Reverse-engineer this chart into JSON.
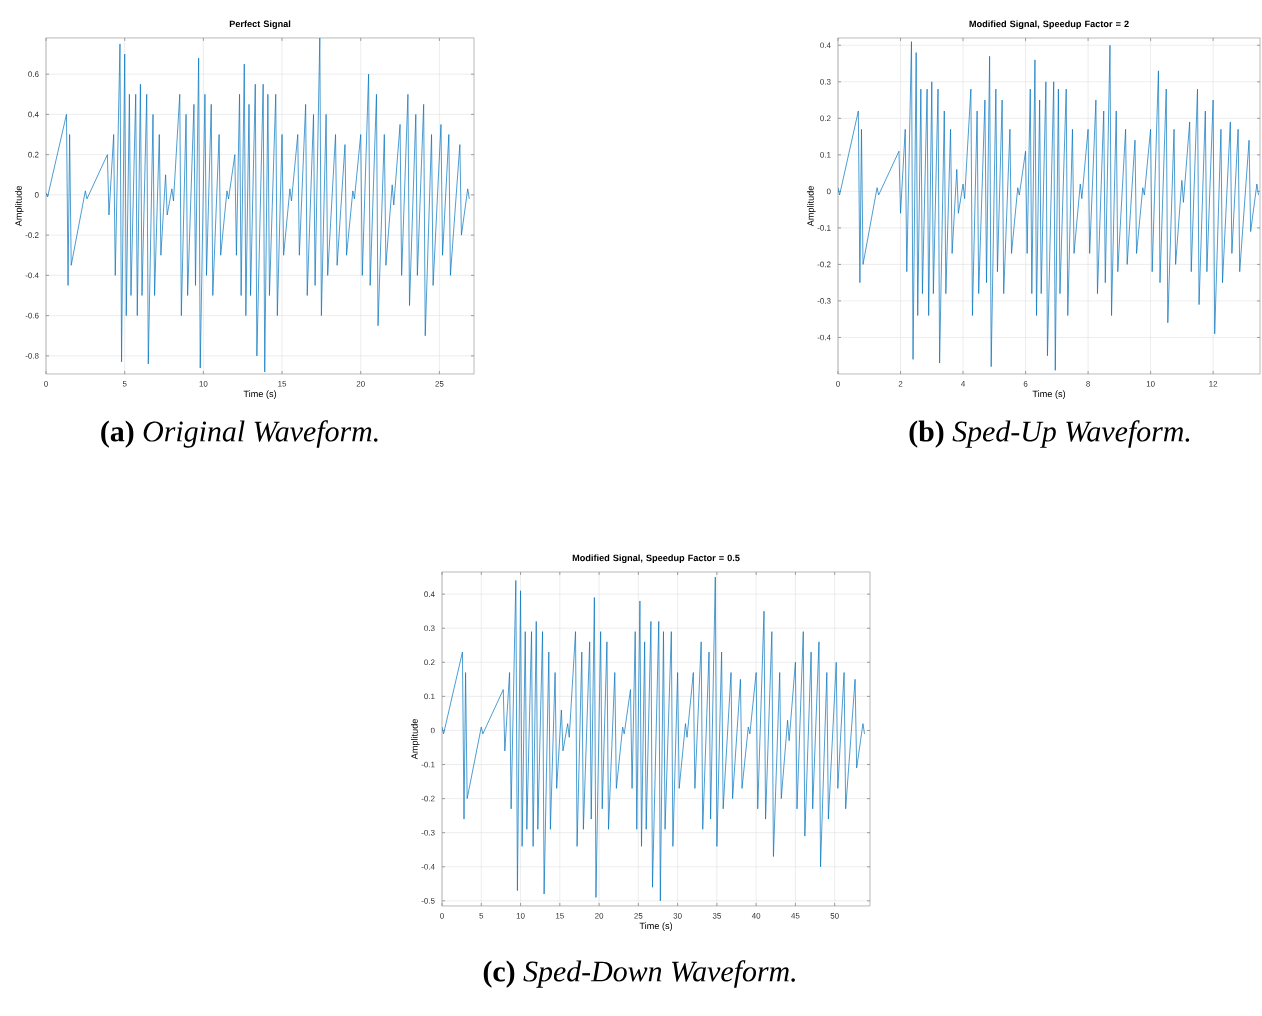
{
  "chart_data": [
    {
      "type": "line",
      "title": "Perfect Signal",
      "xlabel": "Time (s)",
      "ylabel": "Amplitude",
      "annotations": [
        "**(a)** *Original Waveform.*"
      ],
      "xlim": [
        0,
        27.2
      ],
      "ylim": [
        -0.89,
        0.78
      ],
      "xticks": [
        0,
        5,
        10,
        15,
        20,
        25
      ],
      "yticks": [
        -0.8,
        -0.6,
        -0.4,
        -0.2,
        0,
        0.2,
        0.4,
        0.6
      ],
      "grid": true,
      "series": [
        {
          "color": "#0072bd",
          "x": [
            0,
            0.1,
            1.3,
            1.4,
            1.5,
            1.6,
            2.5,
            2.6,
            3.9,
            4,
            4.3,
            4.4,
            4.7,
            4.8,
            5,
            5.1,
            5.3,
            5.4,
            5.7,
            5.8,
            6,
            6.1,
            6.4,
            6.5,
            6.8,
            6.9,
            7.2,
            7.3,
            7.6,
            7.7,
            8,
            8.1,
            8.5,
            8.6,
            8.9,
            9,
            9.4,
            9.5,
            9.7,
            9.8,
            10.1,
            10.2,
            10.5,
            10.6,
            11,
            11.1,
            11.5,
            11.6,
            12,
            12.1,
            12.3,
            12.4,
            12.6,
            12.7,
            12.9,
            13,
            13.3,
            13.4,
            13.8,
            13.9,
            14.1,
            14.2,
            14.6,
            14.7,
            15,
            15.1,
            15.5,
            15.6,
            16,
            16.1,
            16.5,
            16.6,
            17,
            17.1,
            17.4,
            17.5,
            17.8,
            17.9,
            18.4,
            18.5,
            19,
            19.1,
            19.5,
            19.6,
            20,
            20.1,
            20.5,
            20.6,
            21,
            21.1,
            21.5,
            21.6,
            22,
            22.1,
            22.5,
            22.6,
            23,
            23.1,
            23.5,
            23.6,
            24,
            24.1,
            24.5,
            24.6,
            25.1,
            25.2,
            25.6,
            25.7,
            26.3,
            26.4,
            26.8,
            26.9
          ],
          "values": [
            0.01,
            -0.01,
            0.4,
            -0.45,
            0.3,
            -0.35,
            0.02,
            -0.02,
            0.2,
            -0.1,
            0.3,
            -0.4,
            0.75,
            -0.83,
            0.7,
            -0.6,
            0.5,
            -0.5,
            0.5,
            -0.6,
            0.55,
            -0.5,
            0.5,
            -0.84,
            0.4,
            -0.5,
            0.3,
            -0.3,
            0.1,
            -0.1,
            0.03,
            -0.03,
            0.5,
            -0.6,
            0.4,
            -0.5,
            0.45,
            -0.45,
            0.68,
            -0.86,
            0.5,
            -0.4,
            0.45,
            -0.5,
            0.3,
            -0.3,
            0.02,
            -0.02,
            0.2,
            -0.3,
            0.5,
            -0.5,
            0.65,
            -0.6,
            0.45,
            -0.5,
            0.55,
            -0.8,
            0.55,
            -0.88,
            0.5,
            -0.5,
            0.5,
            -0.6,
            0.3,
            -0.3,
            0.03,
            -0.03,
            0.3,
            -0.3,
            0.45,
            -0.5,
            0.4,
            -0.45,
            0.78,
            -0.6,
            0.4,
            -0.4,
            0.3,
            -0.35,
            0.25,
            -0.3,
            0.02,
            -0.02,
            0.3,
            -0.4,
            0.6,
            -0.45,
            0.5,
            -0.65,
            0.3,
            -0.35,
            0.05,
            -0.05,
            0.35,
            -0.4,
            0.5,
            -0.55,
            0.4,
            -0.4,
            0.45,
            -0.7,
            0.3,
            -0.45,
            0.35,
            -0.3,
            0.3,
            -0.4,
            0.25,
            -0.2,
            0.03,
            -0.02
          ]
        }
      ]
    },
    {
      "type": "line",
      "title": "Modified Signal, Speedup Factor = 2",
      "xlabel": "Time (s)",
      "ylabel": "Amplitude",
      "annotations": [
        "**(b)** *Sped-Up Waveform.*"
      ],
      "xlim": [
        0,
        13.5
      ],
      "ylim": [
        -0.5,
        0.42
      ],
      "xticks": [
        0,
        2,
        4,
        6,
        8,
        10,
        12
      ],
      "yticks": [
        -0.4,
        -0.3,
        -0.2,
        -0.1,
        0,
        0.1,
        0.2,
        0.3,
        0.4
      ],
      "grid": true,
      "series": [
        {
          "color": "#0072bd",
          "x": [
            0,
            0.05,
            0.65,
            0.7,
            0.75,
            0.8,
            1.25,
            1.3,
            1.95,
            2,
            2.15,
            2.2,
            2.35,
            2.4,
            2.5,
            2.55,
            2.65,
            2.7,
            2.85,
            2.9,
            3,
            3.05,
            3.2,
            3.25,
            3.4,
            3.45,
            3.6,
            3.65,
            3.8,
            3.85,
            4,
            4.05,
            4.25,
            4.3,
            4.45,
            4.5,
            4.7,
            4.75,
            4.85,
            4.9,
            5.05,
            5.1,
            5.25,
            5.3,
            5.5,
            5.55,
            5.75,
            5.8,
            6,
            6.05,
            6.15,
            6.2,
            6.3,
            6.35,
            6.45,
            6.5,
            6.65,
            6.7,
            6.9,
            6.95,
            7.05,
            7.1,
            7.3,
            7.35,
            7.5,
            7.55,
            7.75,
            7.8,
            8,
            8.05,
            8.25,
            8.3,
            8.5,
            8.55,
            8.7,
            8.75,
            8.9,
            8.95,
            9.2,
            9.25,
            9.5,
            9.55,
            9.75,
            9.8,
            10,
            10.05,
            10.25,
            10.3,
            10.5,
            10.55,
            10.75,
            10.8,
            11,
            11.05,
            11.25,
            11.3,
            11.5,
            11.55,
            11.75,
            11.8,
            12,
            12.05,
            12.25,
            12.3,
            12.55,
            12.6,
            12.8,
            12.85,
            13.15,
            13.2,
            13.4,
            13.45
          ],
          "values": [
            0.01,
            -0.01,
            0.22,
            -0.25,
            0.17,
            -0.2,
            0.01,
            -0.01,
            0.11,
            -0.06,
            0.17,
            -0.22,
            0.41,
            -0.46,
            0.38,
            -0.34,
            0.28,
            -0.28,
            0.28,
            -0.34,
            0.3,
            -0.28,
            0.28,
            -0.47,
            0.22,
            -0.28,
            0.17,
            -0.17,
            0.06,
            -0.06,
            0.02,
            -0.02,
            0.28,
            -0.34,
            0.22,
            -0.28,
            0.25,
            -0.25,
            0.37,
            -0.48,
            0.28,
            -0.22,
            0.25,
            -0.28,
            0.17,
            -0.17,
            0.01,
            -0.01,
            0.11,
            -0.17,
            0.28,
            -0.28,
            0.36,
            -0.34,
            0.25,
            -0.28,
            0.3,
            -0.45,
            0.3,
            -0.49,
            0.28,
            -0.28,
            0.28,
            -0.34,
            0.17,
            -0.17,
            0.02,
            -0.02,
            0.17,
            -0.17,
            0.25,
            -0.28,
            0.22,
            -0.25,
            0.4,
            -0.34,
            0.22,
            -0.22,
            0.17,
            -0.2,
            0.14,
            -0.17,
            0.01,
            -0.01,
            0.17,
            -0.22,
            0.33,
            -0.25,
            0.28,
            -0.36,
            0.17,
            -0.2,
            0.03,
            -0.03,
            0.19,
            -0.22,
            0.28,
            -0.31,
            0.22,
            -0.22,
            0.25,
            -0.39,
            0.17,
            -0.25,
            0.19,
            -0.17,
            0.17,
            -0.22,
            0.14,
            -0.11,
            0.02,
            -0.01
          ]
        }
      ]
    },
    {
      "type": "line",
      "title": "Modified Signal, Speedup Factor = 0.5",
      "xlabel": "Time (s)",
      "ylabel": "Amplitude",
      "annotations": [
        "**(c)** *Sped-Down Waveform.*"
      ],
      "xlim": [
        0,
        54.5
      ],
      "ylim": [
        -0.515,
        0.465
      ],
      "xticks": [
        0,
        5,
        10,
        15,
        20,
        25,
        30,
        35,
        40,
        45,
        50
      ],
      "yticks": [
        -0.5,
        -0.4,
        -0.3,
        -0.2,
        -0.1,
        0,
        0.1,
        0.2,
        0.3,
        0.4
      ],
      "grid": true,
      "series": [
        {
          "color": "#0072bd",
          "x": [
            0,
            0.2,
            2.6,
            2.8,
            3,
            3.2,
            5,
            5.2,
            7.8,
            8,
            8.6,
            8.8,
            9.4,
            9.6,
            10,
            10.2,
            10.6,
            10.8,
            11.4,
            11.6,
            12,
            12.2,
            12.8,
            13,
            13.6,
            13.8,
            14.4,
            14.6,
            15.2,
            15.4,
            16,
            16.2,
            17,
            17.2,
            17.8,
            18,
            18.8,
            19,
            19.4,
            19.6,
            20.2,
            20.4,
            21,
            21.2,
            22,
            22.2,
            23,
            23.2,
            24,
            24.2,
            24.6,
            24.8,
            25.2,
            25.4,
            25.8,
            26,
            26.6,
            26.8,
            27.6,
            27.8,
            28.2,
            28.4,
            29.2,
            29.4,
            30,
            30.2,
            31,
            31.2,
            32,
            32.2,
            33,
            33.2,
            34,
            34.2,
            34.8,
            35,
            35.6,
            35.8,
            36.8,
            37,
            38,
            38.2,
            39,
            39.2,
            40,
            40.2,
            41,
            41.2,
            42,
            42.2,
            43,
            43.2,
            44,
            44.2,
            45,
            45.2,
            46,
            46.2,
            47,
            47.2,
            48,
            48.2,
            49,
            49.2,
            50.2,
            50.4,
            51.2,
            51.4,
            52.6,
            52.8,
            53.6,
            53.8
          ],
          "values": [
            0.01,
            -0.01,
            0.23,
            -0.26,
            0.17,
            -0.2,
            0.01,
            -0.01,
            0.12,
            -0.06,
            0.17,
            -0.23,
            0.44,
            -0.47,
            0.41,
            -0.34,
            0.29,
            -0.29,
            0.29,
            -0.34,
            0.32,
            -0.29,
            0.29,
            -0.48,
            0.23,
            -0.29,
            0.17,
            -0.17,
            0.06,
            -0.06,
            0.02,
            -0.02,
            0.29,
            -0.34,
            0.23,
            -0.29,
            0.26,
            -0.26,
            0.39,
            -0.49,
            0.29,
            -0.23,
            0.26,
            -0.29,
            0.17,
            -0.17,
            0.01,
            -0.01,
            0.12,
            -0.17,
            0.29,
            -0.29,
            0.38,
            -0.34,
            0.26,
            -0.29,
            0.32,
            -0.46,
            0.32,
            -0.5,
            0.29,
            -0.29,
            0.29,
            -0.34,
            0.17,
            -0.17,
            0.02,
            -0.02,
            0.17,
            -0.17,
            0.26,
            -0.29,
            0.23,
            -0.26,
            0.45,
            -0.34,
            0.23,
            -0.23,
            0.17,
            -0.2,
            0.15,
            -0.17,
            0.01,
            -0.01,
            0.17,
            -0.23,
            0.35,
            -0.26,
            0.29,
            -0.37,
            0.17,
            -0.2,
            0.03,
            -0.03,
            0.2,
            -0.23,
            0.29,
            -0.31,
            0.23,
            -0.23,
            0.26,
            -0.4,
            0.17,
            -0.26,
            0.2,
            -0.17,
            0.17,
            -0.23,
            0.15,
            -0.11,
            0.02,
            -0.01
          ]
        }
      ]
    }
  ]
}
